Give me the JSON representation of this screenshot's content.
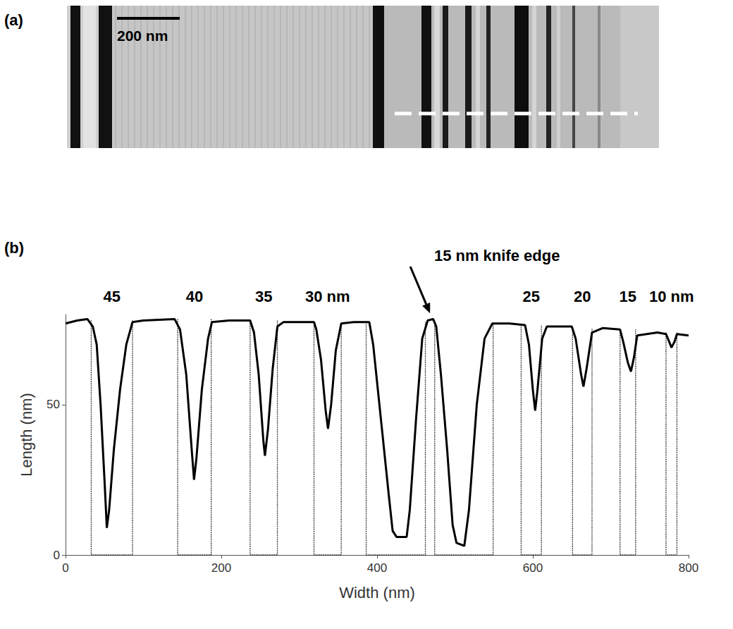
{
  "panel_a": {
    "label": "(a)",
    "scale_bar": "200 nm"
  },
  "chart_data": {
    "type": "line",
    "panel_label": "(b)",
    "x_label": "Width (nm)",
    "y_label": "Length (nm)",
    "color": "#000000",
    "line_style": "solid",
    "grid": false,
    "xlim": [
      0,
      800
    ],
    "xticks": [
      0,
      200,
      400,
      600,
      800
    ],
    "ylim": [
      0,
      80
    ],
    "yticks": [
      0,
      50
    ],
    "x": [
      0,
      15,
      28,
      35,
      40,
      45,
      50,
      53,
      56,
      62,
      70,
      78,
      86,
      100,
      140,
      147,
      155,
      162,
      165,
      168,
      175,
      183,
      188,
      210,
      237,
      242,
      248,
      254,
      256,
      260,
      266,
      272,
      280,
      319,
      322,
      328,
      334,
      337,
      341,
      347,
      354,
      370,
      390,
      395,
      405,
      415,
      420,
      425,
      438,
      442,
      450,
      458,
      465,
      472,
      476,
      482,
      490,
      497,
      502,
      512,
      518,
      528,
      538,
      548,
      570,
      590,
      595,
      600,
      603,
      606,
      612,
      618,
      650,
      655,
      662,
      665,
      669,
      676,
      690,
      712,
      716,
      722,
      726,
      730,
      734,
      760,
      771,
      775,
      778,
      782,
      785,
      800
    ],
    "values": [
      77,
      78,
      78.5,
      76,
      70,
      50,
      25,
      9,
      15,
      35,
      55,
      70,
      77.5,
      78,
      78.5,
      75,
      60,
      35,
      25,
      32,
      55,
      72,
      77.5,
      78,
      78,
      74,
      60,
      38,
      33,
      42,
      62,
      76,
      77.5,
      77.5,
      75,
      65,
      48,
      42,
      50,
      68,
      77,
      77.5,
      77.5,
      70,
      45,
      20,
      8,
      6,
      6,
      15,
      45,
      72,
      78,
      78.5,
      76,
      60,
      35,
      10,
      4,
      3,
      15,
      50,
      72,
      77,
      77,
      76.5,
      70,
      55,
      48,
      55,
      72,
      76,
      76,
      72,
      60,
      56,
      62,
      74,
      75.5,
      75,
      71,
      64,
      61,
      66,
      73,
      74,
      73.5,
      71,
      69,
      71,
      73.5,
      73
    ],
    "guides": [
      {
        "label": "45",
        "x": [
          33,
          86
        ],
        "top": 78
      },
      {
        "label": "40",
        "x": [
          144,
          187
        ],
        "top": 78.5
      },
      {
        "label": "35",
        "x": [
          237,
          272
        ],
        "top": 78
      },
      {
        "label": "30 nm",
        "x": [
          319,
          354
        ],
        "top": 77.5
      },
      {
        "label": null,
        "x": [
          386,
          462
        ],
        "top": 77.5
      },
      {
        "label": null,
        "x": [
          474,
          549
        ],
        "top": 77.5
      },
      {
        "label": "25",
        "x": [
          585,
          611
        ],
        "top": 76.5
      },
      {
        "label": "20",
        "x": [
          651,
          676
        ],
        "top": 75.5
      },
      {
        "label": "15",
        "x": [
          712,
          732
        ],
        "top": 75
      },
      {
        "label": "10 nm",
        "x": [
          771,
          785
        ],
        "top": 74
      }
    ],
    "annotations": [
      {
        "text": "15 nm knife edge",
        "x": 468,
        "y": 79
      }
    ]
  }
}
